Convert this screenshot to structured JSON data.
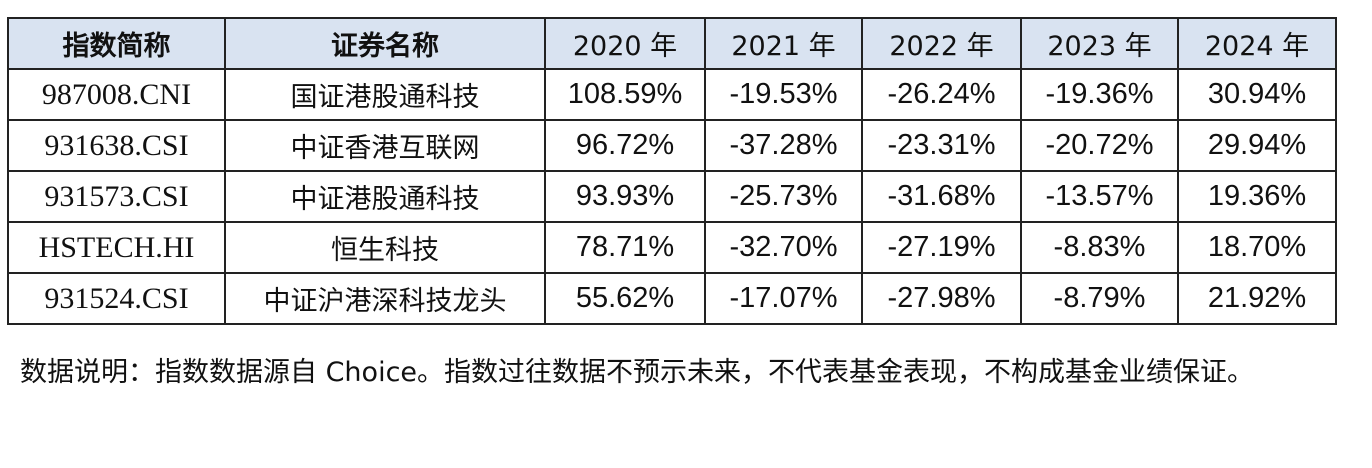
{
  "table": {
    "headers": [
      "指数简称",
      "证券名称",
      "2020 年",
      "2021 年",
      "2022 年",
      "2023 年",
      "2024 年"
    ],
    "rows": [
      [
        "987008.CNI",
        "国证港股通科技",
        "108.59%",
        "-19.53%",
        "-26.24%",
        "-19.36%",
        "30.94%"
      ],
      [
        "931638.CSI",
        "中证香港互联网",
        "96.72%",
        "-37.28%",
        "-23.31%",
        "-20.72%",
        "29.94%"
      ],
      [
        "931573.CSI",
        "中证港股通科技",
        "93.93%",
        "-25.73%",
        "-31.68%",
        "-13.57%",
        "19.36%"
      ],
      [
        "HSTECH.HI",
        "恒生科技",
        "78.71%",
        "-32.70%",
        "-27.19%",
        "-8.83%",
        "18.70%"
      ],
      [
        "931524.CSI",
        "中证沪港深科技龙头",
        "55.62%",
        "-17.07%",
        "-27.98%",
        "-8.79%",
        "21.92%"
      ]
    ]
  },
  "note": {
    "text": "数据说明：指数数据源自 Choice。指数过往数据不预示未来，不代表基金表现，不构成基金业绩保证。"
  },
  "colors": {
    "header_bg": "#d9e3f1",
    "border": "#222222",
    "text": "#111111"
  }
}
